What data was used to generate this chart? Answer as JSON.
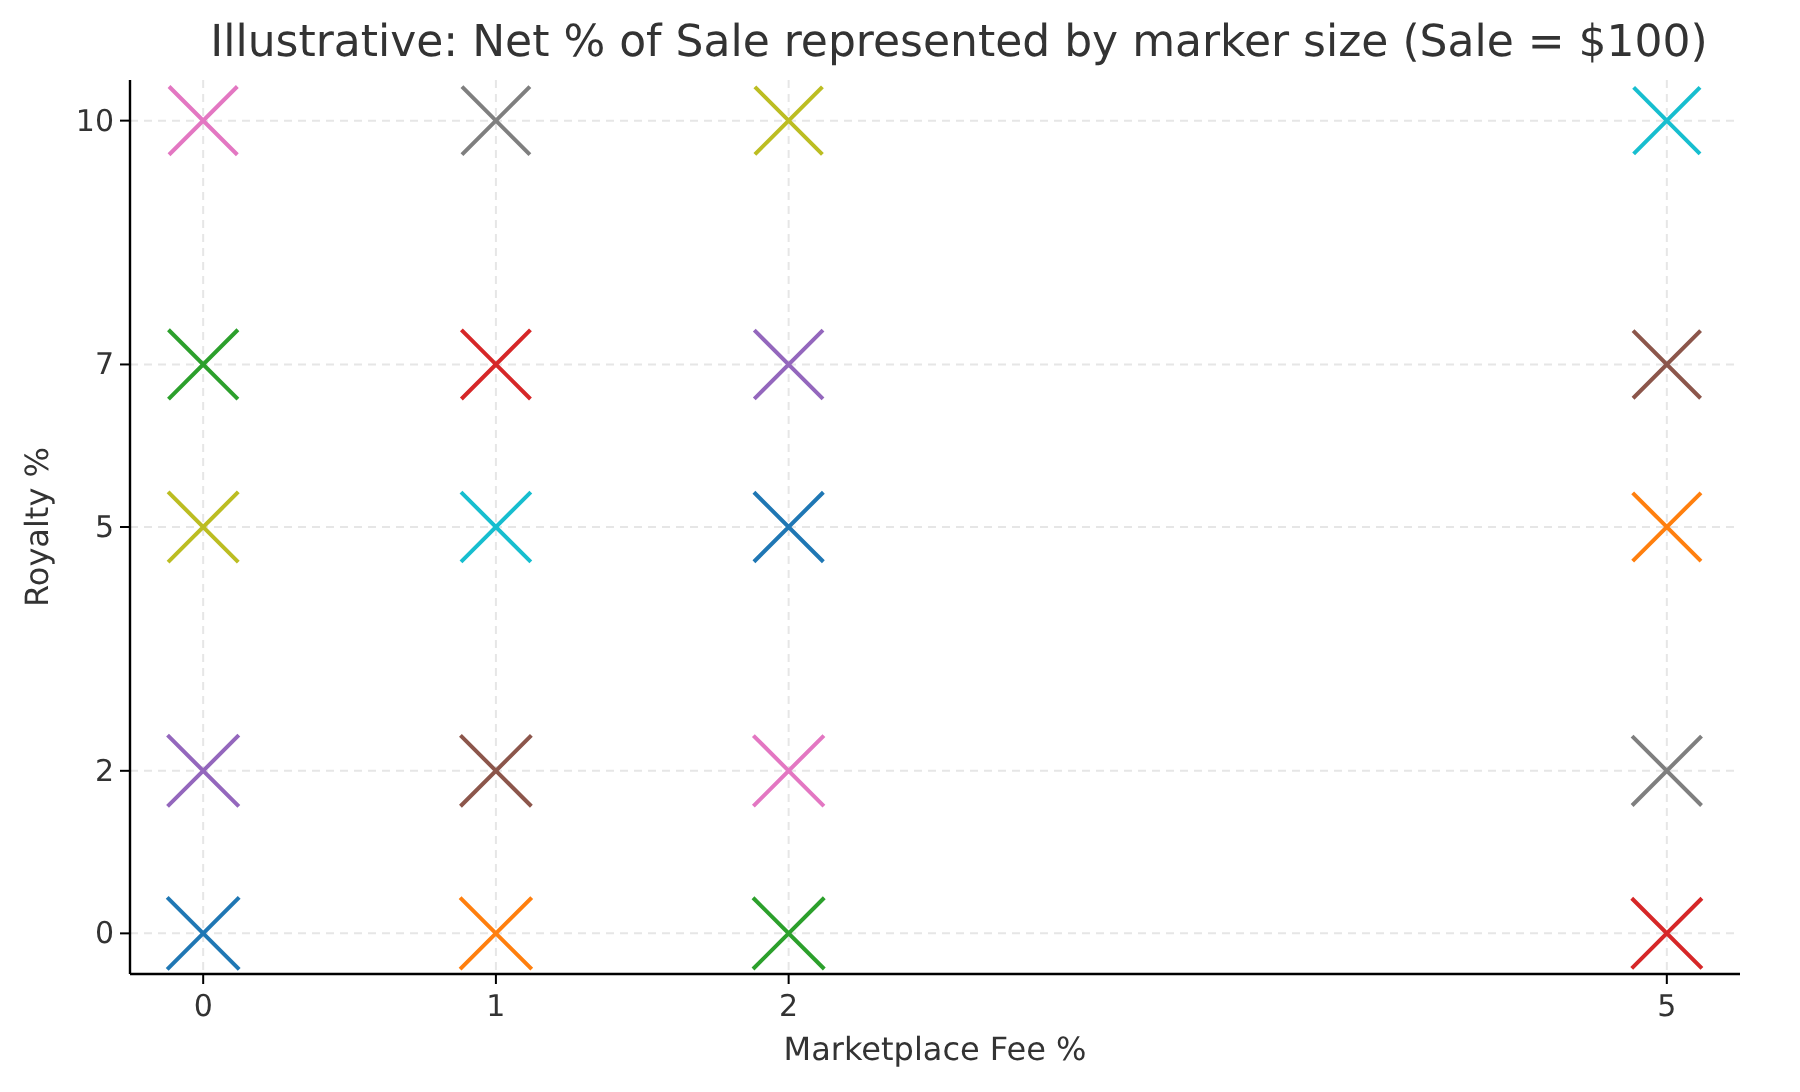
{
  "chart_data": {
    "type": "bubble",
    "title": "Illustrative: Net % of Sale represented by marker size (Sale = $100)",
    "xlabel": "Marketplace Fee %",
    "ylabel": "Royalty %",
    "marker": "cross",
    "grid": true,
    "x": [
      0,
      1,
      2,
      5,
      0,
      1,
      2,
      5,
      0,
      1,
      2,
      5,
      0,
      1,
      2,
      5,
      0,
      1,
      2,
      5
    ],
    "values": [
      0,
      0,
      0,
      0,
      2,
      2,
      2,
      2,
      5,
      5,
      5,
      5,
      7,
      7,
      7,
      7,
      10,
      10,
      10,
      10
    ],
    "sizes": [
      1,
      0.99,
      0.98,
      0.95,
      0.98,
      0.97,
      0.96,
      0.93,
      0.95,
      0.94,
      0.93,
      0.9,
      0.93,
      0.92,
      0.91,
      0.88,
      0.9,
      0.89,
      0.88,
      0.85
    ],
    "colors": [
      "#1f77b4",
      "#ff7f0e",
      "#2ca02c",
      "#d62728",
      "#9467bd",
      "#8c564b",
      "#e377c2",
      "#7f7f7f",
      "#bcbd22",
      "#17becf",
      "#1f77b4",
      "#ff7f0e",
      "#2ca02c",
      "#d62728",
      "#9467bd",
      "#8c564b",
      "#e377c2",
      "#7f7f7f",
      "#bcbd22",
      "#17becf"
    ],
    "xlim": [
      -0.25,
      5.25
    ],
    "xticks": [
      0,
      1,
      2,
      5
    ],
    "ylim": [
      -0.5,
      10.5
    ],
    "yticks": [
      0,
      2,
      5,
      7,
      10
    ]
  }
}
